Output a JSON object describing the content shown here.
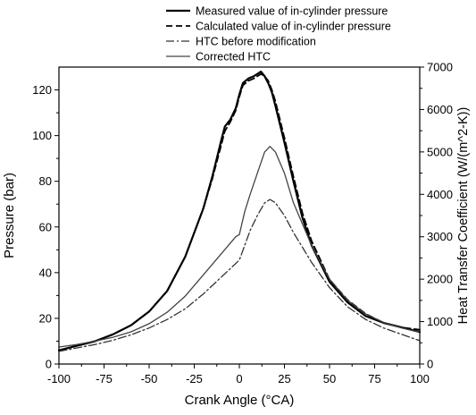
{
  "chart_data": {
    "type": "line",
    "xlabel": "Crank Angle (°CA)",
    "ylabel": "Pressure (bar)",
    "y2label": "Heat Transfer Coefficient (W/(m^2-K))",
    "xlim": [
      -100,
      100
    ],
    "ylim": [
      0,
      130
    ],
    "y2lim": [
      0,
      7000
    ],
    "xticks": [
      "-100",
      "-75",
      "-50",
      "-25",
      "0",
      "25",
      "50",
      "75",
      "100"
    ],
    "yticks": [
      "0",
      "20",
      "40",
      "60",
      "80",
      "100",
      "120"
    ],
    "y2ticks": [
      "0",
      "1000",
      "2000",
      "3000",
      "4000",
      "5000",
      "6000",
      "7000"
    ],
    "grid": false,
    "legend_position": "top, above plot",
    "series": [
      {
        "name": "Measured value of in-cylinder pressure",
        "axis": "left",
        "color": "#000000",
        "style": "solid-thick",
        "x": [
          -100,
          -90,
          -80,
          -70,
          -60,
          -50,
          -40,
          -30,
          -20,
          -15,
          -10,
          -8,
          -5,
          -2,
          0,
          2,
          5,
          8,
          10,
          12,
          14,
          16,
          18,
          20,
          25,
          30,
          35,
          40,
          50,
          60,
          70,
          80,
          90,
          100
        ],
        "y": [
          6,
          8,
          10,
          13,
          17,
          23,
          32,
          47,
          68,
          82,
          98,
          104,
          107,
          112,
          118,
          123,
          125,
          126,
          127,
          128,
          126,
          123,
          119,
          113,
          97,
          80,
          64,
          52,
          36,
          27,
          21,
          18,
          16,
          14
        ]
      },
      {
        "name": "Calculated value of in-cylinder pressure",
        "axis": "left",
        "color": "#000000",
        "style": "dashed",
        "x": [
          -100,
          -90,
          -80,
          -70,
          -60,
          -50,
          -40,
          -30,
          -20,
          -15,
          -10,
          -8,
          -5,
          -2,
          0,
          2,
          5,
          8,
          10,
          12,
          14,
          16,
          18,
          20,
          25,
          30,
          35,
          40,
          50,
          60,
          70,
          80,
          90,
          100
        ],
        "y": [
          6,
          8,
          10,
          13,
          17,
          23,
          32,
          47,
          68,
          81,
          96,
          102,
          106,
          111,
          117,
          122,
          124,
          125,
          126,
          127,
          126,
          124,
          120,
          115,
          99,
          82,
          66,
          54,
          37,
          28,
          22,
          18,
          16,
          15
        ]
      },
      {
        "name": "HTC before modification",
        "axis": "right",
        "color": "#333333",
        "style": "dash-dot",
        "x": [
          -100,
          -90,
          -80,
          -70,
          -60,
          -50,
          -40,
          -30,
          -20,
          -10,
          -5,
          0,
          3,
          6,
          10,
          14,
          17,
          20,
          25,
          30,
          40,
          50,
          60,
          70,
          80,
          90,
          100
        ],
        "y": [
          300,
          380,
          460,
          560,
          690,
          850,
          1050,
          1300,
          1650,
          2050,
          2250,
          2450,
          2800,
          3150,
          3500,
          3800,
          3880,
          3800,
          3500,
          3100,
          2400,
          1800,
          1350,
          1050,
          850,
          700,
          550
        ]
      },
      {
        "name": "Corrected HTC",
        "axis": "right",
        "color": "#444444",
        "style": "solid-thin",
        "x": [
          -100,
          -90,
          -80,
          -70,
          -60,
          -50,
          -40,
          -30,
          -20,
          -10,
          -5,
          -2,
          0,
          3,
          6,
          10,
          14,
          17,
          20,
          25,
          30,
          40,
          50,
          60,
          70,
          80,
          90,
          100
        ],
        "y": [
          400,
          460,
          540,
          630,
          760,
          950,
          1220,
          1600,
          2100,
          2600,
          2850,
          3000,
          3050,
          3600,
          4000,
          4500,
          5000,
          5130,
          5000,
          4500,
          3800,
          2800,
          2000,
          1500,
          1180,
          980,
          850,
          750
        ]
      }
    ]
  }
}
